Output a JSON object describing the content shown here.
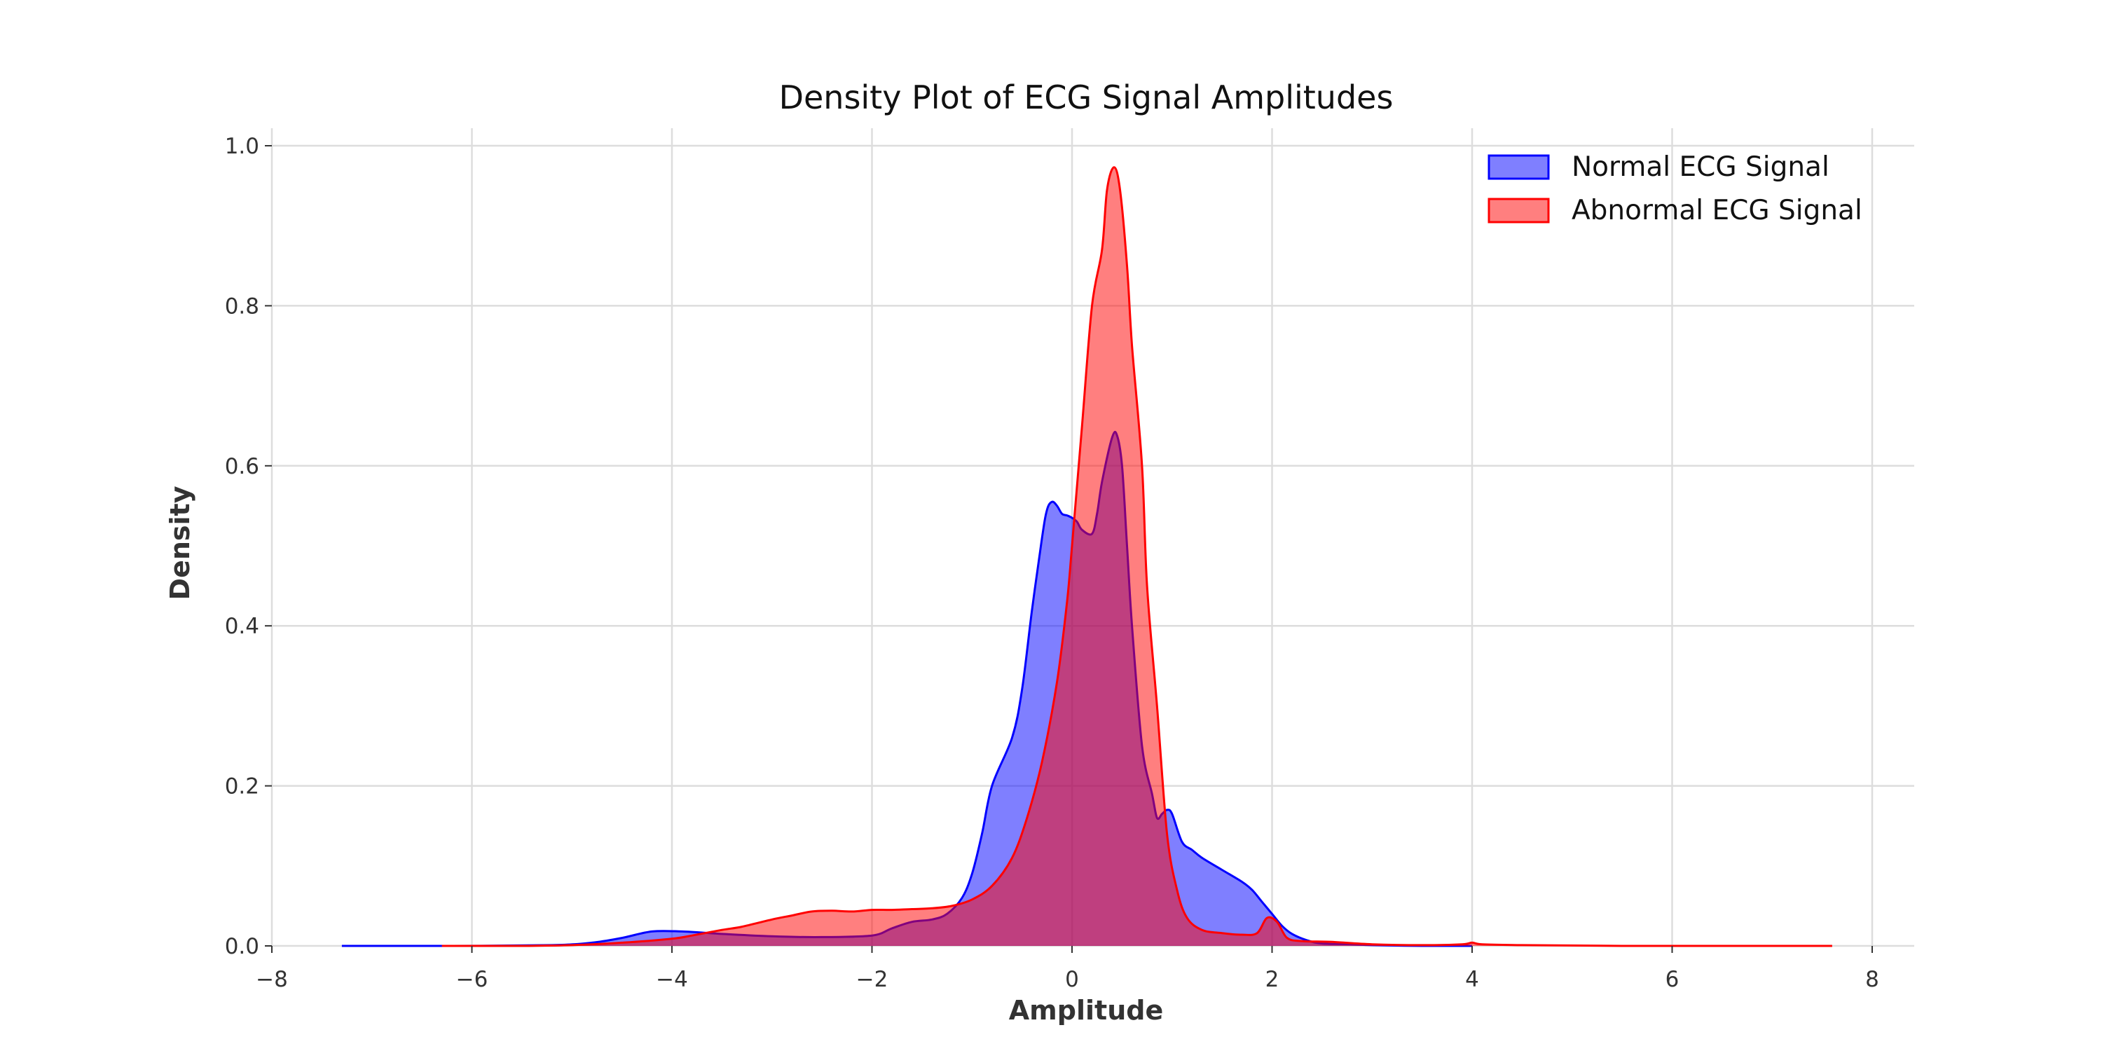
{
  "chart_data": {
    "type": "area",
    "title": "Density Plot of ECG Signal Amplitudes",
    "xlabel": "Amplitude",
    "ylabel": "Density",
    "xlim": [
      -8,
      8.4
    ],
    "ylim": [
      0,
      1.02
    ],
    "xticks": [
      -8,
      -6,
      -4,
      -2,
      0,
      2,
      4,
      6,
      8
    ],
    "xtick_labels": [
      "−8",
      "−6",
      "−4",
      "−2",
      "0",
      "2",
      "4",
      "6",
      "8"
    ],
    "yticks": [
      0,
      0.2,
      0.4,
      0.6,
      0.8,
      1.0
    ],
    "ytick_labels": [
      "0.0",
      "0.2",
      "0.4",
      "0.6",
      "0.8",
      "1.0"
    ],
    "grid": true,
    "legend": {
      "position": "top-right"
    },
    "series": [
      {
        "name": "Normal ECG Signal",
        "fill": "#0000ff",
        "line": "#0000ff",
        "alpha": 0.5,
        "points": [
          [
            -7.3,
            0
          ],
          [
            -6.2,
            0
          ],
          [
            -5.2,
            0.001
          ],
          [
            -4.8,
            0.004
          ],
          [
            -4.5,
            0.01
          ],
          [
            -4.2,
            0.018
          ],
          [
            -3.9,
            0.018
          ],
          [
            -3.5,
            0.015
          ],
          [
            -3.0,
            0.012
          ],
          [
            -2.5,
            0.011
          ],
          [
            -2.0,
            0.013
          ],
          [
            -1.8,
            0.022
          ],
          [
            -1.6,
            0.03
          ],
          [
            -1.4,
            0.033
          ],
          [
            -1.25,
            0.04
          ],
          [
            -1.1,
            0.06
          ],
          [
            -1.0,
            0.09
          ],
          [
            -0.9,
            0.14
          ],
          [
            -0.8,
            0.2
          ],
          [
            -0.6,
            0.26
          ],
          [
            -0.5,
            0.32
          ],
          [
            -0.4,
            0.42
          ],
          [
            -0.3,
            0.51
          ],
          [
            -0.25,
            0.545
          ],
          [
            -0.2,
            0.555
          ],
          [
            -0.15,
            0.55
          ],
          [
            -0.1,
            0.54
          ],
          [
            -0.05,
            0.538
          ],
          [
            0.0,
            0.535
          ],
          [
            0.05,
            0.53
          ],
          [
            0.1,
            0.52
          ],
          [
            0.2,
            0.515
          ],
          [
            0.25,
            0.54
          ],
          [
            0.3,
            0.58
          ],
          [
            0.4,
            0.635
          ],
          [
            0.45,
            0.638
          ],
          [
            0.5,
            0.6
          ],
          [
            0.55,
            0.5
          ],
          [
            0.6,
            0.4
          ],
          [
            0.7,
            0.25
          ],
          [
            0.8,
            0.19
          ],
          [
            0.85,
            0.16
          ],
          [
            0.9,
            0.165
          ],
          [
            0.95,
            0.17
          ],
          [
            1.0,
            0.165
          ],
          [
            1.1,
            0.13
          ],
          [
            1.2,
            0.12
          ],
          [
            1.3,
            0.11
          ],
          [
            1.5,
            0.095
          ],
          [
            1.7,
            0.08
          ],
          [
            1.8,
            0.07
          ],
          [
            1.9,
            0.055
          ],
          [
            2.0,
            0.04
          ],
          [
            2.1,
            0.025
          ],
          [
            2.2,
            0.015
          ],
          [
            2.35,
            0.007
          ],
          [
            2.5,
            0.003
          ],
          [
            2.8,
            0.002
          ],
          [
            3.0,
            0.001
          ],
          [
            3.5,
            0
          ],
          [
            4.0,
            0
          ]
        ]
      },
      {
        "name": "Abnormal ECG Signal",
        "fill": "#ff0000",
        "line": "#ff0000",
        "alpha": 0.5,
        "points": [
          [
            -6.3,
            0
          ],
          [
            -5.5,
            0
          ],
          [
            -5.0,
            0.001
          ],
          [
            -4.5,
            0.004
          ],
          [
            -4.0,
            0.009
          ],
          [
            -3.8,
            0.013
          ],
          [
            -3.5,
            0.02
          ],
          [
            -3.3,
            0.024
          ],
          [
            -3.0,
            0.033
          ],
          [
            -2.8,
            0.038
          ],
          [
            -2.6,
            0.043
          ],
          [
            -2.4,
            0.044
          ],
          [
            -2.2,
            0.043
          ],
          [
            -2.0,
            0.045
          ],
          [
            -1.8,
            0.045
          ],
          [
            -1.6,
            0.046
          ],
          [
            -1.4,
            0.047
          ],
          [
            -1.2,
            0.05
          ],
          [
            -1.0,
            0.058
          ],
          [
            -0.8,
            0.075
          ],
          [
            -0.6,
            0.11
          ],
          [
            -0.45,
            0.16
          ],
          [
            -0.3,
            0.23
          ],
          [
            -0.15,
            0.33
          ],
          [
            -0.05,
            0.43
          ],
          [
            0.0,
            0.5
          ],
          [
            0.1,
            0.65
          ],
          [
            0.2,
            0.8
          ],
          [
            0.3,
            0.87
          ],
          [
            0.35,
            0.945
          ],
          [
            0.42,
            0.973
          ],
          [
            0.48,
            0.945
          ],
          [
            0.55,
            0.85
          ],
          [
            0.6,
            0.75
          ],
          [
            0.7,
            0.6
          ],
          [
            0.75,
            0.45
          ],
          [
            0.85,
            0.3
          ],
          [
            0.95,
            0.14
          ],
          [
            1.05,
            0.07
          ],
          [
            1.15,
            0.035
          ],
          [
            1.3,
            0.02
          ],
          [
            1.5,
            0.016
          ],
          [
            1.7,
            0.014
          ],
          [
            1.85,
            0.016
          ],
          [
            1.95,
            0.035
          ],
          [
            2.05,
            0.03
          ],
          [
            2.15,
            0.01
          ],
          [
            2.3,
            0.006
          ],
          [
            2.6,
            0.005
          ],
          [
            3.0,
            0.002
          ],
          [
            3.5,
            0.001
          ],
          [
            3.9,
            0.002
          ],
          [
            4.0,
            0.004
          ],
          [
            4.1,
            0.002
          ],
          [
            4.5,
            0.001
          ],
          [
            5.5,
            0
          ],
          [
            7.6,
            0
          ]
        ]
      }
    ]
  }
}
